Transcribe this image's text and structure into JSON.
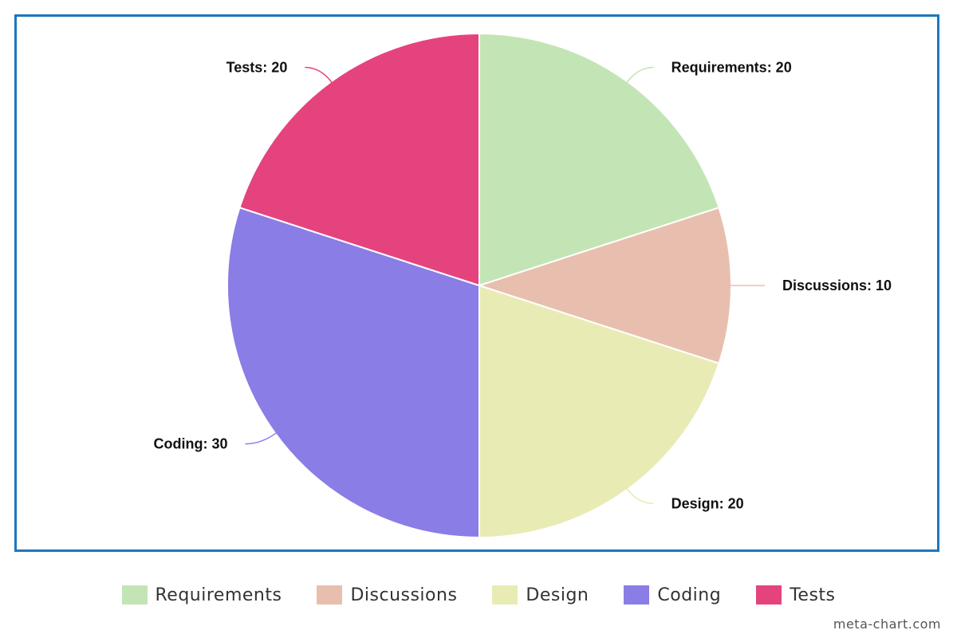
{
  "chart_data": {
    "type": "pie",
    "slices": [
      {
        "label": "Requirements",
        "value": 20,
        "color": "#c3e5b5",
        "data_label": "Requirements: 20"
      },
      {
        "label": "Discussions",
        "value": 10,
        "color": "#e8bfae",
        "data_label": "Discussions: 10"
      },
      {
        "label": "Design",
        "value": 20,
        "color": "#e9ebb4",
        "data_label": "Design: 20"
      },
      {
        "label": "Coding",
        "value": 30,
        "color": "#8a7de6",
        "data_label": "Coding: 30"
      },
      {
        "label": "Tests",
        "value": 20,
        "color": "#e5437e",
        "data_label": "Tests: 20"
      }
    ],
    "legend": {
      "placement": "bottom",
      "items": [
        "Requirements",
        "Discussions",
        "Design",
        "Coding",
        "Tests"
      ]
    },
    "start_angle": "top",
    "direction": "clockwise"
  },
  "frame_border_color": "#1f76bd",
  "watermark": "meta-chart.com"
}
